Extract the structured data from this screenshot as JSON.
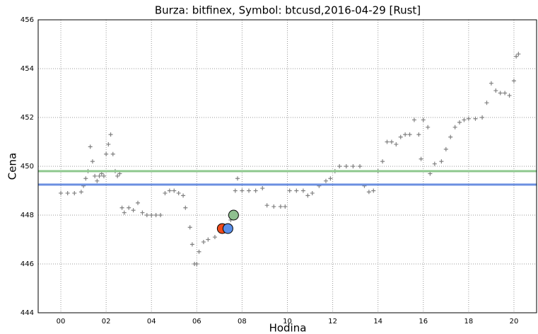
{
  "chart_data": {
    "type": "scatter",
    "title": "Burza: bitfinex, Symbol: btcusd,2016-04-29 [Rust]",
    "xlabel": "Hodina",
    "ylabel": "Cena",
    "xlim": [
      -1,
      21
    ],
    "xticks": [
      {
        "value": 0,
        "label": "00"
      },
      {
        "value": 2,
        "label": "02"
      },
      {
        "value": 4,
        "label": "04"
      },
      {
        "value": 6,
        "label": "06"
      },
      {
        "value": 8,
        "label": "08"
      },
      {
        "value": 10,
        "label": "10"
      },
      {
        "value": 12,
        "label": "12"
      },
      {
        "value": 14,
        "label": "14"
      },
      {
        "value": 16,
        "label": "16"
      },
      {
        "value": 18,
        "label": "18"
      },
      {
        "value": 20,
        "label": "20"
      }
    ],
    "ylim": [
      444,
      456
    ],
    "yticks": [
      444,
      446,
      448,
      450,
      452,
      454,
      456
    ],
    "grid": true,
    "color": "#808080",
    "x": [
      0.0,
      0.3,
      0.6,
      0.9,
      1.0,
      1.1,
      1.2,
      1.3,
      1.4,
      1.5,
      1.6,
      1.7,
      1.8,
      1.9,
      2.0,
      2.1,
      2.2,
      2.3,
      2.4,
      2.5,
      2.6,
      2.7,
      2.8,
      3.0,
      3.2,
      3.4,
      3.6,
      3.8,
      4.0,
      4.2,
      4.4,
      4.6,
      4.8,
      5.0,
      5.2,
      5.4,
      5.5,
      5.7,
      5.8,
      5.9,
      6.0,
      6.1,
      6.3,
      6.5,
      6.8,
      7.2,
      7.5,
      7.7,
      7.8,
      8.0,
      8.3,
      8.6,
      8.9,
      9.1,
      9.4,
      9.7,
      9.9,
      10.1,
      10.4,
      10.7,
      10.9,
      11.1,
      11.4,
      11.7,
      11.9,
      12.1,
      12.3,
      12.6,
      12.9,
      13.2,
      13.4,
      13.6,
      13.8,
      14.0,
      14.2,
      14.4,
      14.6,
      14.8,
      15.0,
      15.2,
      15.4,
      15.6,
      15.8,
      15.9,
      16.0,
      16.2,
      16.3,
      16.5,
      16.8,
      17.0,
      17.2,
      17.4,
      17.6,
      17.8,
      18.0,
      18.3,
      18.6,
      18.8,
      19.0,
      19.2,
      19.4,
      19.6,
      19.8,
      20.0,
      20.1,
      20.2
    ],
    "values": [
      448.9,
      448.9,
      448.9,
      448.95,
      449.2,
      449.5,
      449.8,
      450.8,
      450.2,
      449.6,
      449.4,
      449.6,
      449.7,
      449.6,
      450.5,
      450.9,
      451.3,
      450.5,
      449.8,
      449.6,
      449.7,
      448.3,
      448.1,
      448.3,
      448.2,
      448.5,
      448.1,
      448.0,
      448.0,
      448.0,
      448.0,
      448.9,
      449.0,
      449.0,
      448.9,
      448.8,
      448.3,
      447.5,
      446.8,
      446.0,
      446.0,
      446.5,
      446.9,
      447.0,
      447.1,
      447.5,
      447.8,
      449.0,
      449.5,
      449.0,
      449.0,
      449.0,
      449.1,
      448.4,
      448.35,
      448.35,
      448.35,
      449.0,
      449.0,
      449.0,
      448.8,
      448.9,
      449.2,
      449.4,
      449.5,
      449.8,
      450.0,
      450.0,
      450.0,
      450.0,
      449.2,
      448.95,
      449.0,
      449.8,
      450.2,
      451.0,
      451.0,
      450.9,
      451.2,
      451.3,
      451.3,
      451.9,
      451.3,
      450.3,
      451.9,
      451.6,
      449.7,
      450.1,
      450.2,
      450.7,
      451.2,
      451.6,
      451.8,
      451.9,
      451.95,
      451.95,
      452.0,
      452.6,
      453.4,
      453.1,
      453.0,
      453.0,
      452.9,
      453.5,
      454.5,
      454.6
    ],
    "hlines": [
      {
        "value": 449.8,
        "color": "#8fc98f"
      },
      {
        "value": 449.25,
        "color": "#6b8fe0"
      }
    ],
    "points": [
      {
        "x": 7.125,
        "y": 447.45,
        "color": "#f04a1a"
      },
      {
        "x": 7.375,
        "y": 447.45,
        "color": "#5b8fe8"
      },
      {
        "x": 7.625,
        "y": 448.0,
        "color": "#8fc08f"
      }
    ]
  }
}
